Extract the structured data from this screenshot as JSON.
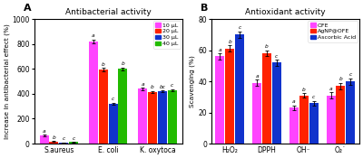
{
  "chart_data": [
    {
      "type": "bar",
      "title": "Antibacterial activity",
      "panel_label": "A",
      "y_label": "Increase in antibacterial effect (%)",
      "categories": [
        "S.aureus",
        "E. coli",
        "K. oxytoca"
      ],
      "series": [
        {
          "name": "10 μL",
          "color": "#FF44FF",
          "values": [
            65,
            820,
            440
          ],
          "errors": [
            5,
            15,
            10
          ],
          "annotations": [
            "a",
            "a",
            "a"
          ]
        },
        {
          "name": "20 μL",
          "color": "#FF2200",
          "values": [
            18,
            595,
            415
          ],
          "errors": [
            3,
            12,
            8
          ],
          "annotations": [
            "b",
            "b",
            "b"
          ]
        },
        {
          "name": "30 μL",
          "color": "#1133CC",
          "values": [
            8,
            320,
            420
          ],
          "errors": [
            2,
            10,
            8
          ],
          "annotations": [
            "c",
            "c",
            "bc"
          ]
        },
        {
          "name": "40 μL",
          "color": "#22BB00",
          "values": [
            12,
            600,
            430
          ],
          "errors": [
            3,
            12,
            8
          ],
          "annotations": [
            "c",
            "b",
            "c"
          ]
        }
      ],
      "ylim": [
        0,
        1000
      ],
      "yticks": [
        0,
        200,
        400,
        600,
        800,
        1000
      ],
      "legend": "upper right"
    },
    {
      "type": "bar",
      "title": "Antioxidant activity",
      "panel_label": "B",
      "y_label": "Scavenging (%)",
      "categories": [
        "H₂O₂",
        "DPPH",
        "OH⁻",
        "O₂˙"
      ],
      "series": [
        {
          "name": "OFE",
          "color": "#FF44FF",
          "values": [
            56,
            39,
            23,
            31
          ],
          "errors": [
            2,
            2,
            1.5,
            2
          ],
          "annotations": [
            "a",
            "a",
            "a",
            "a"
          ]
        },
        {
          "name": "AgNP@OFE",
          "color": "#FF2200",
          "values": [
            61,
            58,
            31,
            37
          ],
          "errors": [
            2,
            2,
            1.5,
            2
          ],
          "annotations": [
            "b",
            "b",
            "b",
            "b"
          ]
        },
        {
          "name": "Ascorbic Acid",
          "color": "#1133CC",
          "values": [
            70,
            52,
            26,
            40
          ],
          "errors": [
            2,
            2,
            1.5,
            2
          ],
          "annotations": [
            "c",
            "c",
            "c",
            "c"
          ]
        }
      ],
      "ylim": [
        0,
        80
      ],
      "yticks": [
        0,
        20,
        40,
        60,
        80
      ],
      "legend": "upper right"
    }
  ]
}
